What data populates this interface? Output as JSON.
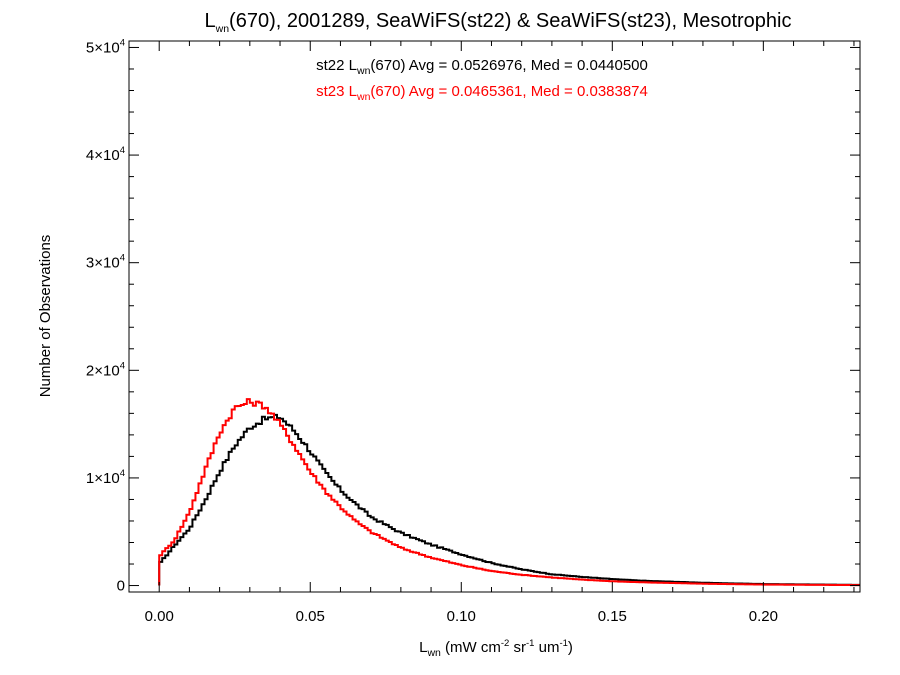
{
  "chart_data": {
    "type": "line",
    "title": {
      "main": "L",
      "sub": "wn",
      "rest": "(670), 2001289, SeaWiFS(st22) & SeaWiFS(st23), Mesotrophic"
    },
    "xlabel": {
      "main": "L",
      "sub": "wn",
      "part1": " (mW cm",
      "sup1": "-2",
      "part2": " sr",
      "sup2": "-1",
      "part3": " um",
      "sup3": "-1",
      "part4": ")"
    },
    "ylabel": "Number of Observations",
    "xlim": [
      -0.01,
      0.232
    ],
    "ylim": [
      -600,
      50600
    ],
    "xticks": [
      {
        "value": 0.0,
        "label": "0.00"
      },
      {
        "value": 0.05,
        "label": "0.05"
      },
      {
        "value": 0.1,
        "label": "0.10"
      },
      {
        "value": 0.15,
        "label": "0.15"
      },
      {
        "value": 0.2,
        "label": "0.20"
      }
    ],
    "yticks": [
      {
        "value": 0,
        "mant": "0",
        "exp": ""
      },
      {
        "value": 10000,
        "mant": "1×10",
        "exp": "4"
      },
      {
        "value": 20000,
        "mant": "2×10",
        "exp": "4"
      },
      {
        "value": 30000,
        "mant": "3×10",
        "exp": "4"
      },
      {
        "value": 40000,
        "mant": "4×10",
        "exp": "4"
      },
      {
        "value": 50000,
        "mant": "5×10",
        "exp": "4"
      }
    ],
    "grid": false,
    "bin_width": 0.001,
    "annotations": [
      {
        "pre": "st22 L",
        "sub": "wn",
        "post": "(670) Avg = 0.0526976, Med = 0.0440500",
        "color": "#000000"
      },
      {
        "pre": "st23 L",
        "sub": "wn",
        "post": "(670) Avg = 0.0465361, Med = 0.0383874",
        "color": "#ff0000"
      }
    ],
    "series": [
      {
        "name": "st22",
        "color": "#000000",
        "x": [
          0.0,
          0.005,
          0.01,
          0.015,
          0.02,
          0.025,
          0.03,
          0.035,
          0.04,
          0.045,
          0.05,
          0.055,
          0.06,
          0.065,
          0.07,
          0.08,
          0.09,
          0.1,
          0.11,
          0.12,
          0.13,
          0.14,
          0.15,
          0.16,
          0.18,
          0.2,
          0.232
        ],
        "y": [
          2000,
          3700,
          5300,
          7800,
          10600,
          13000,
          14700,
          15500,
          15700,
          14300,
          12500,
          10500,
          8900,
          7600,
          6400,
          4900,
          3800,
          2900,
          2100,
          1500,
          1050,
          800,
          600,
          450,
          260,
          140,
          60
        ]
      },
      {
        "name": "st23",
        "color": "#ff0000",
        "x": [
          0.0,
          0.005,
          0.01,
          0.015,
          0.02,
          0.025,
          0.03,
          0.035,
          0.04,
          0.045,
          0.05,
          0.055,
          0.06,
          0.065,
          0.07,
          0.08,
          0.09,
          0.1,
          0.11,
          0.12,
          0.13,
          0.14,
          0.15,
          0.16,
          0.18,
          0.2,
          0.232
        ],
        "y": [
          2700,
          4200,
          6800,
          10600,
          14200,
          16500,
          17100,
          16700,
          15000,
          12900,
          10600,
          8800,
          7300,
          6000,
          5000,
          3500,
          2600,
          1900,
          1350,
          1000,
          750,
          550,
          400,
          300,
          170,
          90,
          40
        ]
      }
    ]
  }
}
